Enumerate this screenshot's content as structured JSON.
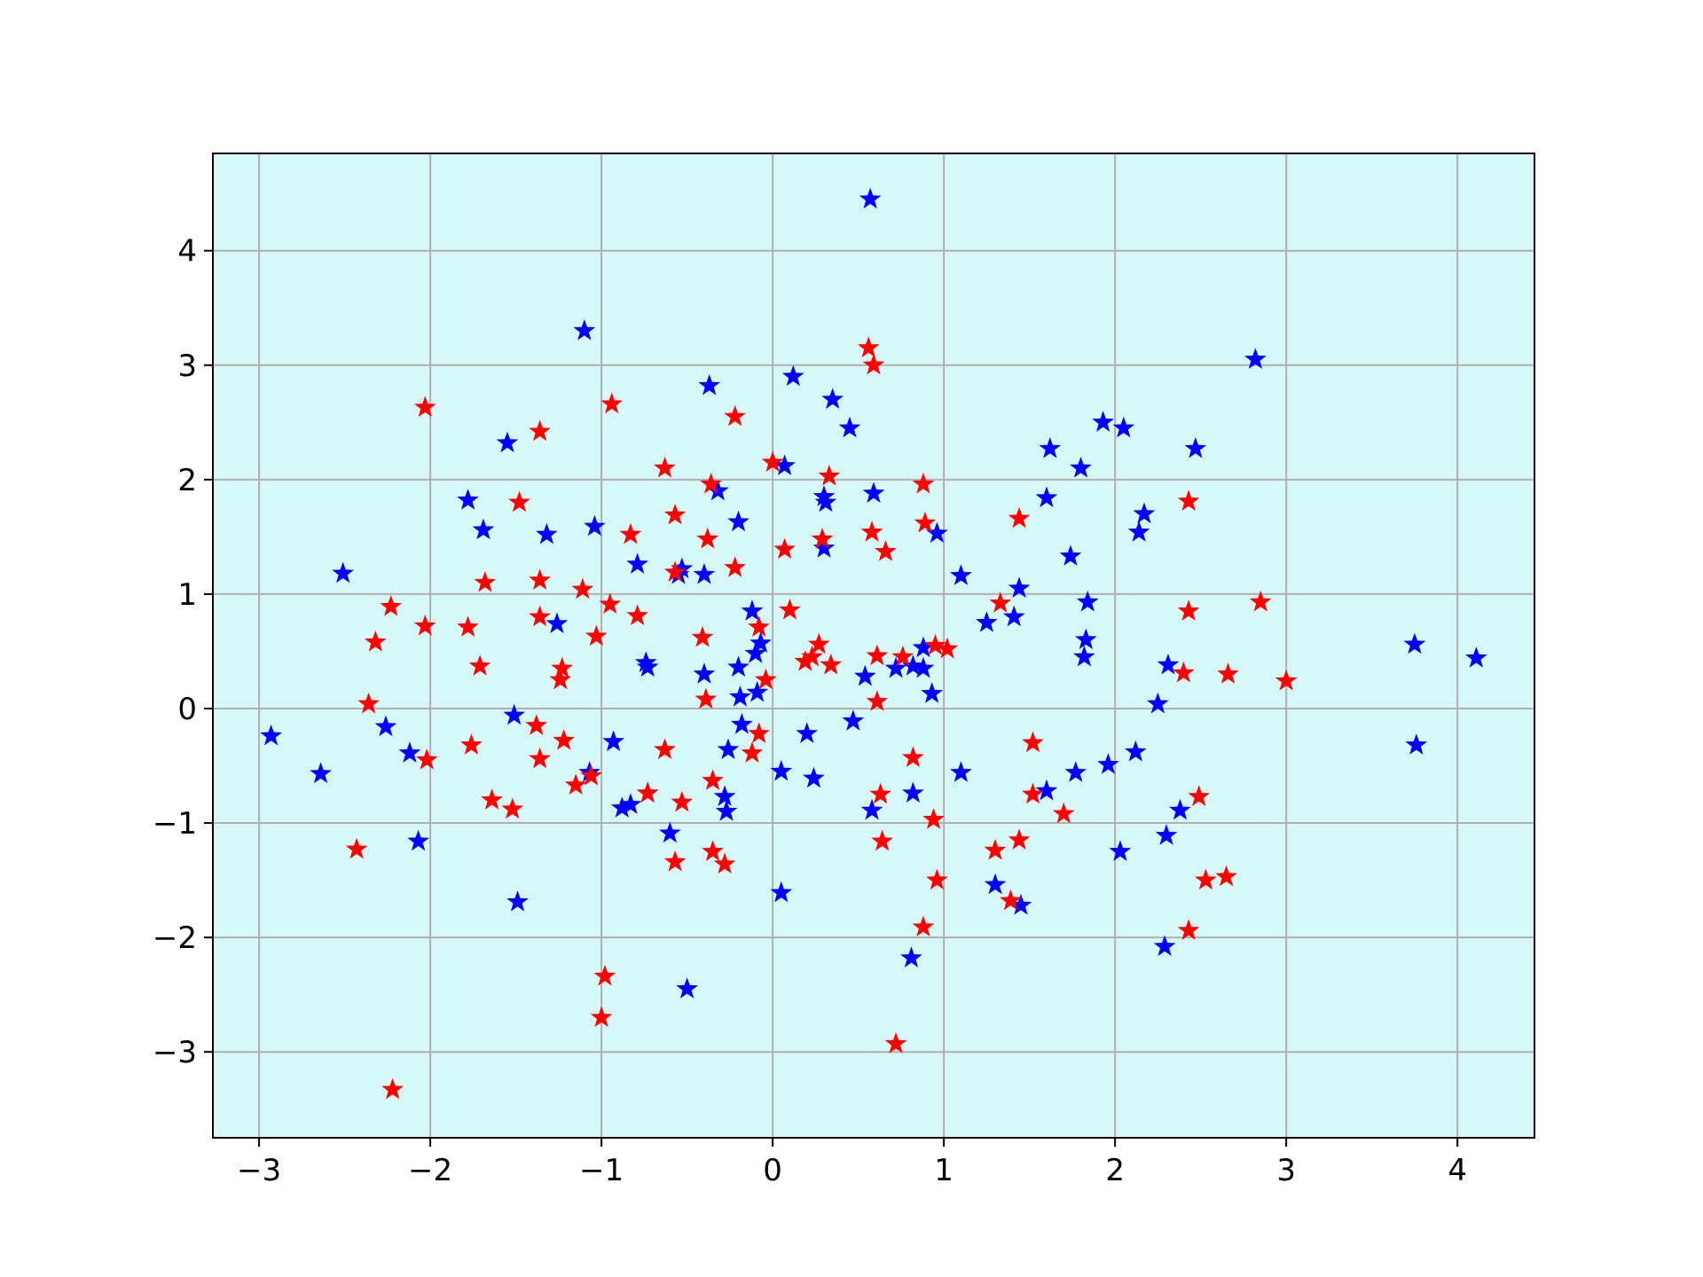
{
  "chart_data": {
    "type": "scatter",
    "title": "",
    "xlabel": "",
    "ylabel": "",
    "xlim": [
      -3.27,
      4.45
    ],
    "ylim": [
      -3.75,
      4.85
    ],
    "grid": true,
    "marker": "star",
    "colors": {
      "plot_background": "#d6f8f7",
      "grid": "#b0b0b0",
      "axes": "#000000"
    },
    "x_ticks": [
      {
        "value": -3,
        "label": "−3"
      },
      {
        "value": -2,
        "label": "−2"
      },
      {
        "value": -1,
        "label": "−1"
      },
      {
        "value": 0,
        "label": "0"
      },
      {
        "value": 1,
        "label": "1"
      },
      {
        "value": 2,
        "label": "2"
      },
      {
        "value": 3,
        "label": "3"
      },
      {
        "value": 4,
        "label": "4"
      }
    ],
    "y_ticks": [
      {
        "value": -3,
        "label": "−3"
      },
      {
        "value": -2,
        "label": "−2"
      },
      {
        "value": -1,
        "label": "−1"
      },
      {
        "value": 0,
        "label": "0"
      },
      {
        "value": 1,
        "label": "1"
      },
      {
        "value": 2,
        "label": "2"
      },
      {
        "value": 3,
        "label": "3"
      },
      {
        "value": 4,
        "label": "4"
      }
    ],
    "series": [
      {
        "color": "#0000ff",
        "points": [
          [
            0.57,
            4.45
          ],
          [
            -1.1,
            3.3
          ],
          [
            2.82,
            3.05
          ],
          [
            0.12,
            2.9
          ],
          [
            -0.37,
            2.82
          ],
          [
            0.35,
            2.7
          ],
          [
            0.45,
            2.45
          ],
          [
            1.93,
            2.5
          ],
          [
            2.05,
            2.45
          ],
          [
            2.47,
            2.27
          ],
          [
            1.62,
            2.27
          ],
          [
            -1.55,
            2.32
          ],
          [
            1.8,
            2.1
          ],
          [
            0.07,
            2.12
          ],
          [
            -0.32,
            1.9
          ],
          [
            0.59,
            1.88
          ],
          [
            0.3,
            1.85
          ],
          [
            0.31,
            1.8
          ],
          [
            1.6,
            1.84
          ],
          [
            -1.78,
            1.82
          ],
          [
            2.17,
            1.7
          ],
          [
            -0.2,
            1.63
          ],
          [
            -1.69,
            1.56
          ],
          [
            -1.04,
            1.59
          ],
          [
            2.14,
            1.54
          ],
          [
            -1.32,
            1.52
          ],
          [
            0.96,
            1.53
          ],
          [
            0.3,
            1.4
          ],
          [
            1.74,
            1.33
          ],
          [
            -0.79,
            1.26
          ],
          [
            -0.53,
            1.22
          ],
          [
            -0.55,
            1.17
          ],
          [
            -0.4,
            1.17
          ],
          [
            1.1,
            1.16
          ],
          [
            -2.51,
            1.18
          ],
          [
            1.44,
            1.05
          ],
          [
            1.84,
            0.93
          ],
          [
            -0.12,
            0.85
          ],
          [
            1.25,
            0.75
          ],
          [
            -1.26,
            0.74
          ],
          [
            1.41,
            0.8
          ],
          [
            -0.07,
            0.57
          ],
          [
            1.83,
            0.6
          ],
          [
            -0.1,
            0.48
          ],
          [
            0.88,
            0.53
          ],
          [
            1.82,
            0.45
          ],
          [
            -0.74,
            0.4
          ],
          [
            -0.73,
            0.36
          ],
          [
            0.72,
            0.35
          ],
          [
            0.82,
            0.37
          ],
          [
            0.88,
            0.35
          ],
          [
            2.31,
            0.38
          ],
          [
            -0.2,
            0.36
          ],
          [
            0.54,
            0.28
          ],
          [
            -0.4,
            0.3
          ],
          [
            -0.09,
            0.14
          ],
          [
            -0.19,
            0.1
          ],
          [
            0.93,
            0.13
          ],
          [
            2.25,
            0.04
          ],
          [
            3.75,
            0.56
          ],
          [
            4.11,
            0.44
          ],
          [
            -1.51,
            -0.06
          ],
          [
            -0.18,
            -0.14
          ],
          [
            0.47,
            -0.11
          ],
          [
            -2.93,
            -0.24
          ],
          [
            -2.26,
            -0.16
          ],
          [
            -2.12,
            -0.39
          ],
          [
            0.2,
            -0.22
          ],
          [
            -0.93,
            -0.29
          ],
          [
            -0.26,
            -0.36
          ],
          [
            2.12,
            -0.38
          ],
          [
            3.76,
            -0.32
          ],
          [
            -2.64,
            -0.57
          ],
          [
            -1.07,
            -0.56
          ],
          [
            0.05,
            -0.55
          ],
          [
            0.24,
            -0.61
          ],
          [
            1.1,
            -0.56
          ],
          [
            1.77,
            -0.56
          ],
          [
            1.96,
            -0.49
          ],
          [
            -0.73,
            -0.74
          ],
          [
            -0.28,
            -0.77
          ],
          [
            -0.83,
            -0.84
          ],
          [
            -0.88,
            -0.87
          ],
          [
            0.82,
            -0.74
          ],
          [
            1.6,
            -0.72
          ],
          [
            -0.27,
            -0.9
          ],
          [
            0.58,
            -0.89
          ],
          [
            2.38,
            -0.89
          ],
          [
            -0.6,
            -1.09
          ],
          [
            2.3,
            -1.11
          ],
          [
            -2.07,
            -1.16
          ],
          [
            2.03,
            -1.25
          ],
          [
            1.3,
            -1.54
          ],
          [
            -1.49,
            -1.69
          ],
          [
            1.45,
            -1.72
          ],
          [
            0.05,
            -1.61
          ],
          [
            0.81,
            -2.18
          ],
          [
            2.29,
            -2.08
          ],
          [
            -0.5,
            -2.45
          ]
        ]
      },
      {
        "color": "#ff0000",
        "points": [
          [
            0.56,
            3.15
          ],
          [
            0.59,
            3.0
          ],
          [
            -0.94,
            2.66
          ],
          [
            -2.03,
            2.63
          ],
          [
            -0.22,
            2.55
          ],
          [
            -1.36,
            2.42
          ],
          [
            -0.63,
            2.1
          ],
          [
            0.0,
            2.15
          ],
          [
            0.33,
            2.03
          ],
          [
            -0.36,
            1.96
          ],
          [
            0.88,
            1.96
          ],
          [
            -1.48,
            1.8
          ],
          [
            2.43,
            1.81
          ],
          [
            -0.57,
            1.69
          ],
          [
            1.44,
            1.66
          ],
          [
            0.89,
            1.62
          ],
          [
            -0.83,
            1.52
          ],
          [
            0.58,
            1.54
          ],
          [
            -0.38,
            1.48
          ],
          [
            0.29,
            1.48
          ],
          [
            0.07,
            1.39
          ],
          [
            0.66,
            1.37
          ],
          [
            -0.22,
            1.23
          ],
          [
            -0.57,
            1.19
          ],
          [
            -1.36,
            1.12
          ],
          [
            -1.68,
            1.1
          ],
          [
            -1.11,
            1.04
          ],
          [
            1.33,
            0.92
          ],
          [
            2.85,
            0.93
          ],
          [
            -2.23,
            0.89
          ],
          [
            -0.95,
            0.91
          ],
          [
            0.1,
            0.86
          ],
          [
            2.43,
            0.85
          ],
          [
            -1.36,
            0.8
          ],
          [
            -0.79,
            0.81
          ],
          [
            -2.03,
            0.72
          ],
          [
            -1.78,
            0.71
          ],
          [
            -0.08,
            0.71
          ],
          [
            -2.32,
            0.58
          ],
          [
            -1.03,
            0.63
          ],
          [
            -0.41,
            0.62
          ],
          [
            0.27,
            0.56
          ],
          [
            0.23,
            0.45
          ],
          [
            0.19,
            0.41
          ],
          [
            0.61,
            0.46
          ],
          [
            0.76,
            0.45
          ],
          [
            0.95,
            0.55
          ],
          [
            1.02,
            0.52
          ],
          [
            -1.71,
            0.37
          ],
          [
            -1.23,
            0.35
          ],
          [
            -1.24,
            0.25
          ],
          [
            0.34,
            0.38
          ],
          [
            -0.04,
            0.25
          ],
          [
            2.4,
            0.31
          ],
          [
            2.66,
            0.3
          ],
          [
            3.0,
            0.24
          ],
          [
            -2.36,
            0.04
          ],
          [
            -0.39,
            0.08
          ],
          [
            0.61,
            0.06
          ],
          [
            -1.38,
            -0.15
          ],
          [
            -1.22,
            -0.28
          ],
          [
            -0.08,
            -0.22
          ],
          [
            -1.76,
            -0.32
          ],
          [
            -0.63,
            -0.36
          ],
          [
            1.52,
            -0.3
          ],
          [
            -2.02,
            -0.45
          ],
          [
            -1.36,
            -0.44
          ],
          [
            -0.12,
            -0.39
          ],
          [
            0.82,
            -0.43
          ],
          [
            -1.06,
            -0.59
          ],
          [
            -1.15,
            -0.67
          ],
          [
            -0.35,
            -0.63
          ],
          [
            -0.73,
            -0.74
          ],
          [
            -1.64,
            -0.8
          ],
          [
            -1.52,
            -0.88
          ],
          [
            -0.53,
            -0.82
          ],
          [
            0.63,
            -0.75
          ],
          [
            1.52,
            -0.75
          ],
          [
            1.7,
            -0.92
          ],
          [
            2.49,
            -0.77
          ],
          [
            0.94,
            -0.97
          ],
          [
            -2.43,
            -1.23
          ],
          [
            0.64,
            -1.16
          ],
          [
            1.44,
            -1.15
          ],
          [
            1.3,
            -1.24
          ],
          [
            -0.57,
            -1.34
          ],
          [
            -0.35,
            -1.25
          ],
          [
            -0.28,
            -1.36
          ],
          [
            0.96,
            -1.5
          ],
          [
            1.39,
            -1.68
          ],
          [
            2.53,
            -1.5
          ],
          [
            2.65,
            -1.47
          ],
          [
            0.88,
            -1.91
          ],
          [
            2.43,
            -1.94
          ],
          [
            -0.98,
            -2.34
          ],
          [
            -1.0,
            -2.7
          ],
          [
            0.72,
            -2.93
          ],
          [
            -2.22,
            -3.33
          ]
        ]
      }
    ]
  }
}
